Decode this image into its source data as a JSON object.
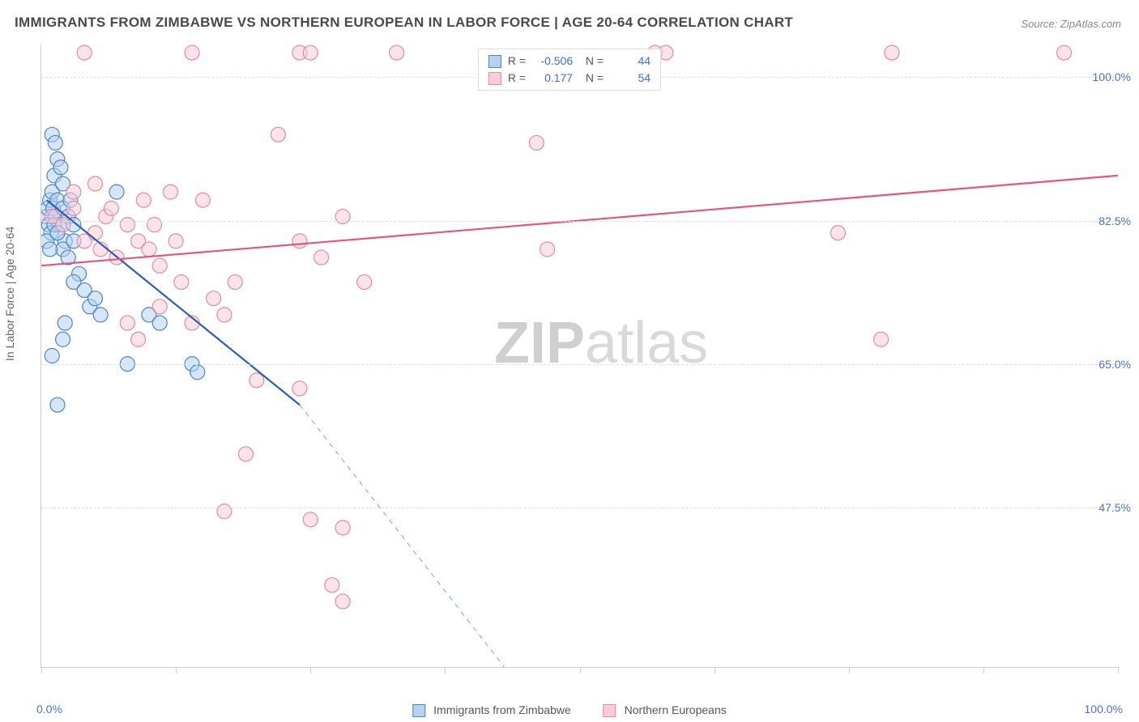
{
  "title": "IMMIGRANTS FROM ZIMBABWE VS NORTHERN EUROPEAN IN LABOR FORCE | AGE 20-64 CORRELATION CHART",
  "source": "Source: ZipAtlas.com",
  "watermark_a": "ZIP",
  "watermark_b": "atlas",
  "chart": {
    "type": "scatter",
    "ylabel": "In Labor Force | Age 20-64",
    "xlim": [
      0,
      100
    ],
    "ylim": [
      28,
      104
    ],
    "x_origin_label": "0.0%",
    "x_max_label": "100.0%",
    "xtick_positions": [
      0,
      12.5,
      25,
      37.5,
      50,
      62.5,
      75,
      87.5,
      100
    ],
    "yticks": [
      {
        "v": 47.5,
        "label": "47.5%"
      },
      {
        "v": 65.0,
        "label": "65.0%"
      },
      {
        "v": 82.5,
        "label": "82.5%"
      },
      {
        "v": 100.0,
        "label": "100.0%"
      }
    ],
    "background_color": "#ffffff",
    "grid_color": "#dddddd",
    "axis_color": "#cccccc",
    "tick_label_color": "#4a72d4",
    "marker_radius": 9,
    "marker_stroke_width": 1.2,
    "line_width": 2.2,
    "series": [
      {
        "id": "zimbabwe",
        "label": "Immigrants from Zimbabwe",
        "fill": "#b7d1ee",
        "fill_opacity": 0.55,
        "stroke": "#4a86c5",
        "line_color": "#2f5fb0",
        "R": "-0.506",
        "N": "44",
        "points": [
          [
            0.5,
            83
          ],
          [
            0.6,
            84
          ],
          [
            0.8,
            85
          ],
          [
            1.0,
            86
          ],
          [
            1.2,
            88
          ],
          [
            0.7,
            82
          ],
          [
            0.9,
            81
          ],
          [
            1.1,
            84
          ],
          [
            1.3,
            83
          ],
          [
            1.5,
            85
          ],
          [
            1.7,
            82
          ],
          [
            2.0,
            84
          ],
          [
            2.2,
            80
          ],
          [
            2.5,
            83
          ],
          [
            2.7,
            85
          ],
          [
            3.0,
            82
          ],
          [
            1.0,
            93
          ],
          [
            1.3,
            92
          ],
          [
            1.5,
            90
          ],
          [
            1.8,
            89
          ],
          [
            2.0,
            87
          ],
          [
            2.0,
            79
          ],
          [
            2.5,
            78
          ],
          [
            3.0,
            80
          ],
          [
            3.5,
            76
          ],
          [
            3.0,
            75
          ],
          [
            4.0,
            74
          ],
          [
            4.5,
            72
          ],
          [
            5.0,
            73
          ],
          [
            5.5,
            71
          ],
          [
            7.0,
            86
          ],
          [
            8.0,
            65
          ],
          [
            10.0,
            71
          ],
          [
            11.0,
            70
          ],
          [
            14.0,
            65
          ],
          [
            14.5,
            64
          ],
          [
            2.0,
            68
          ],
          [
            2.2,
            70
          ],
          [
            1.0,
            66
          ],
          [
            1.5,
            60
          ],
          [
            0.5,
            80
          ],
          [
            0.8,
            79
          ],
          [
            1.2,
            82
          ],
          [
            1.5,
            81
          ]
        ],
        "trend": {
          "x1": 0.5,
          "y1": 85,
          "x2": 24,
          "y2": 60,
          "ext_x": 43,
          "ext_y": 28
        }
      },
      {
        "id": "neuropean",
        "label": "Northern Europeans",
        "fill": "#f6cdd8",
        "fill_opacity": 0.55,
        "stroke": "#e48aa3",
        "line_color": "#e3567e",
        "R": "0.177",
        "N": "54",
        "points": [
          [
            1.0,
            83
          ],
          [
            2.0,
            82
          ],
          [
            3.0,
            84
          ],
          [
            4.0,
            80
          ],
          [
            5.0,
            81
          ],
          [
            5.5,
            79
          ],
          [
            6.0,
            83
          ],
          [
            7.0,
            78
          ],
          [
            8.0,
            82
          ],
          [
            9.0,
            80
          ],
          [
            9.5,
            85
          ],
          [
            10.0,
            79
          ],
          [
            11.0,
            77
          ],
          [
            12.0,
            86
          ],
          [
            13.0,
            75
          ],
          [
            15.0,
            85
          ],
          [
            16.0,
            73
          ],
          [
            17.0,
            71
          ],
          [
            18.0,
            75
          ],
          [
            14.0,
            103
          ],
          [
            24.0,
            103
          ],
          [
            25.0,
            103
          ],
          [
            33.0,
            103
          ],
          [
            46.0,
            92
          ],
          [
            57.0,
            103
          ],
          [
            58.0,
            103
          ],
          [
            95.0,
            103
          ],
          [
            79.0,
            103
          ],
          [
            24.0,
            80
          ],
          [
            26.0,
            78
          ],
          [
            28.0,
            83
          ],
          [
            14.0,
            70
          ],
          [
            17.0,
            47
          ],
          [
            25.0,
            46
          ],
          [
            28.0,
            45
          ],
          [
            27.0,
            38
          ],
          [
            28.0,
            36
          ],
          [
            20.0,
            63
          ],
          [
            24.0,
            62
          ],
          [
            78.0,
            68
          ],
          [
            47.0,
            79
          ],
          [
            74.0,
            81
          ],
          [
            5.0,
            87
          ],
          [
            6.5,
            84
          ],
          [
            10.5,
            82
          ],
          [
            12.5,
            80
          ],
          [
            4.0,
            103
          ],
          [
            3.0,
            86
          ],
          [
            8.0,
            70
          ],
          [
            9.0,
            68
          ],
          [
            11.0,
            72
          ],
          [
            19.0,
            54
          ],
          [
            22.0,
            93
          ],
          [
            30.0,
            75
          ]
        ],
        "trend": {
          "x1": 0,
          "y1": 77,
          "x2": 100,
          "y2": 88
        }
      }
    ]
  },
  "legend_bottom": [
    {
      "swatch_fill": "#b7d1ee",
      "swatch_stroke": "#4a86c5",
      "label": "Immigrants from Zimbabwe"
    },
    {
      "swatch_fill": "#f6cdd8",
      "swatch_stroke": "#e48aa3",
      "label": "Northern Europeans"
    }
  ]
}
